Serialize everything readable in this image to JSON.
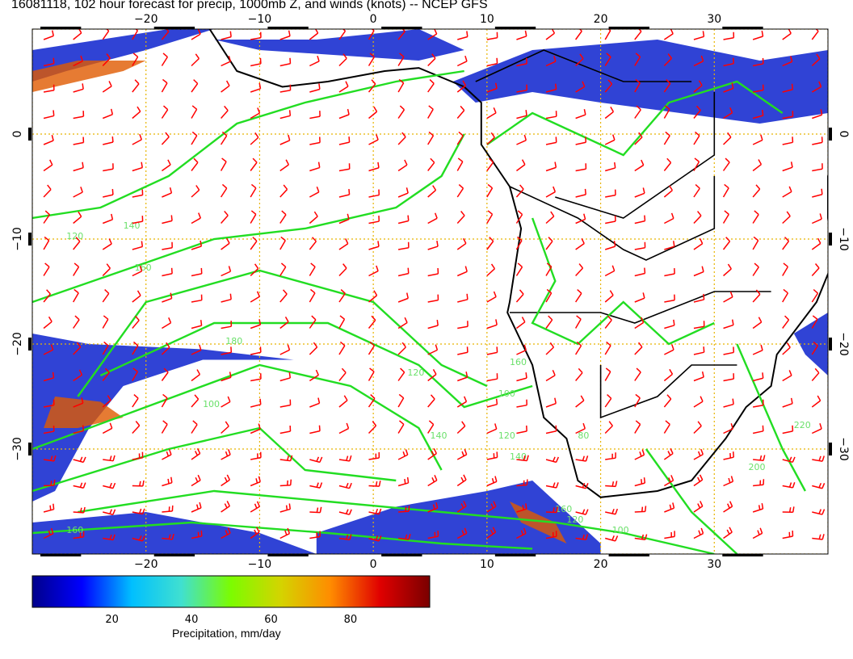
{
  "title": "16081118, 102 hour forecast for precip, 1000mb Z, and winds (knots) -- NCEP GFS",
  "map": {
    "lon_ticks": [
      -20,
      -10,
      0,
      10,
      20,
      30
    ],
    "lat_ticks": [
      0,
      -10,
      -20,
      -30
    ],
    "lon_range": [
      -30,
      40
    ],
    "lat_range": [
      -40,
      10
    ],
    "gridlines": "dotted",
    "grid_color": "#e8b400",
    "contour_color": "#22dd22",
    "barb_color": "#ff0000",
    "coastline_color": "#000000",
    "contour_labels": [
      "120",
      "140",
      "160",
      "180",
      "100",
      "120",
      "140",
      "160",
      "100",
      "120",
      "140",
      "80",
      "160",
      "200",
      "220",
      "160",
      "120",
      "100"
    ]
  },
  "colorbar": {
    "label": "Precipitation, mm/day",
    "ticks": [
      20,
      40,
      60,
      80
    ],
    "range": [
      0,
      100
    ],
    "colors": [
      "#00008b",
      "#0000ff",
      "#00bfff",
      "#40e0d0",
      "#7cfc00",
      "#d4d400",
      "#ff8c00",
      "#e00000",
      "#7a0000"
    ]
  }
}
